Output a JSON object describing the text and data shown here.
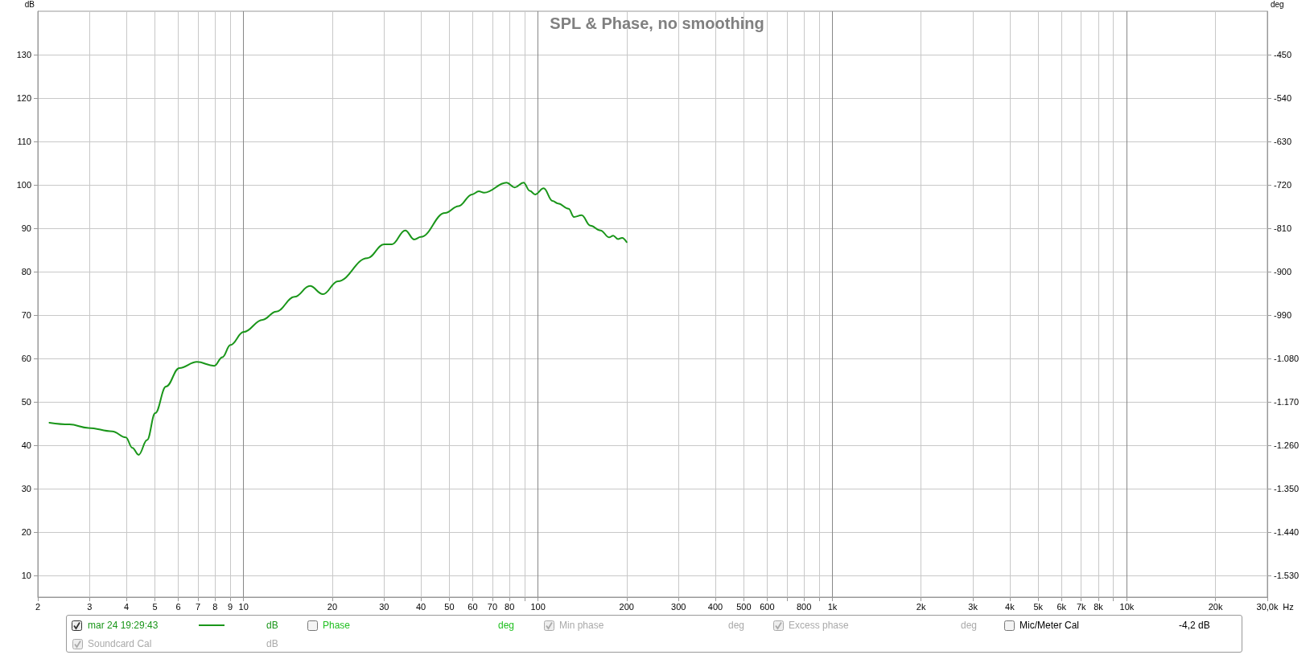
{
  "chart_data": {
    "type": "line",
    "title": "SPL & Phase, no smoothing",
    "ylabel": "dB",
    "xlabel": "Hz",
    "y2label": "deg",
    "x": [
      2.19,
      2.56,
      2.97,
      3.58,
      3.98,
      4.19,
      4.4,
      4.7,
      5.01,
      5.45,
      6.05,
      6.94,
      7.95,
      8.47,
      9.02,
      10,
      11.6,
      12.9,
      14.9,
      16.8,
      18.6,
      20.9,
      26.3,
      30,
      31.9,
      35.4,
      38,
      40,
      48.3,
      53.7,
      59.7,
      62.9,
      65.6,
      78.2,
      83.3,
      89.3,
      93.8,
      97.8,
      104.5,
      112,
      117,
      127,
      132.5,
      140.6,
      150.6,
      163,
      174.5,
      180,
      187,
      193,
      200
    ],
    "series": [
      {
        "name": "mar 24 19:29:43",
        "color": "#1a961a",
        "values": [
          45.2,
          44.8,
          44.0,
          43.2,
          41.8,
          39.4,
          37.8,
          41.2,
          47.4,
          53.5,
          57.8,
          59.2,
          58.3,
          60.3,
          63.1,
          66.1,
          68.9,
          70.8,
          74.2,
          76.7,
          74.8,
          77.8,
          83.1,
          86.3,
          86.3,
          89.5,
          87.4,
          88.0,
          93.5,
          95.1,
          97.8,
          98.5,
          98.2,
          100.5,
          99.4,
          100.5,
          98.6,
          97.8,
          99.2,
          96.3,
          95.7,
          94.5,
          92.6,
          93.0,
          90.6,
          89.5,
          87.9,
          88.3,
          87.5,
          87.8,
          86.8
        ]
      }
    ],
    "xlim": [
      2,
      30000
    ],
    "xticks": [
      2,
      3,
      4,
      5,
      6,
      7,
      8,
      9,
      10,
      20,
      30,
      40,
      50,
      60,
      70,
      80,
      {
        "value": 90,
        "label": null
      },
      100,
      200,
      300,
      400,
      500,
      600,
      {
        "value": 700,
        "label": null
      },
      800,
      {
        "value": 900,
        "label": null
      },
      {
        "value": 1000,
        "label": "1k"
      },
      {
        "value": 2000,
        "label": "2k"
      },
      {
        "value": 3000,
        "label": "3k"
      },
      {
        "value": 4000,
        "label": "4k"
      },
      {
        "value": 5000,
        "label": "5k"
      },
      {
        "value": 6000,
        "label": "6k"
      },
      {
        "value": 7000,
        "label": "7k"
      },
      {
        "value": 8000,
        "label": "8k"
      },
      {
        "value": 9000,
        "label": null
      },
      {
        "value": 10000,
        "label": "10k"
      },
      {
        "value": 20000,
        "label": "20k"
      },
      {
        "value": 30000,
        "label": "30,0k"
      }
    ],
    "ylim": [
      5,
      140
    ],
    "yticks": [
      10,
      20,
      30,
      40,
      50,
      60,
      70,
      80,
      90,
      100,
      110,
      120,
      130
    ],
    "y2lim": [
      -1575,
      -360
    ],
    "y2ticks": [
      -450,
      -540,
      -630,
      -720,
      -810,
      -900,
      -990,
      {
        "value": -1080,
        "label": "-1.080"
      },
      {
        "value": -1170,
        "label": "-1.170"
      },
      {
        "value": -1260,
        "label": "-1.260"
      },
      {
        "value": -1350,
        "label": "-1.350"
      },
      {
        "value": -1440,
        "label": "-1.440"
      },
      {
        "value": -1530,
        "label": "-1.530"
      }
    ],
    "log": "x",
    "grid": true,
    "legend": "bottom",
    "marker": "none",
    "line_style": "solid",
    "annotations": [
      "dB",
      "Phase",
      "deg",
      "Min phase",
      "deg",
      "Excess phase",
      "deg",
      "Mic/Meter Cal",
      "-4,2 dB",
      "Soundcard Cal",
      "dB"
    ]
  }
}
